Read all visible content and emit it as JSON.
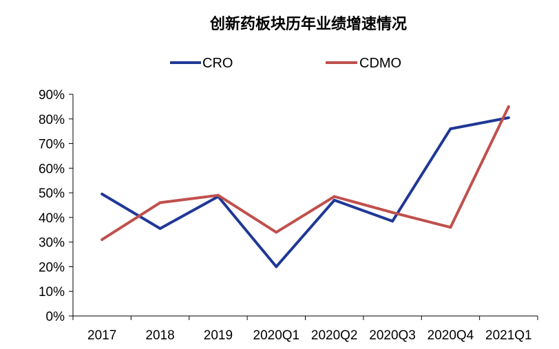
{
  "chart_data": {
    "type": "line",
    "title": "创新药板块历年业绩增速情况",
    "xlabel": "",
    "ylabel": "",
    "categories": [
      "2017",
      "2018",
      "2019",
      "2020Q1",
      "2020Q2",
      "2020Q3",
      "2020Q4",
      "2021Q1"
    ],
    "ylim": [
      0,
      90
    ],
    "yticks": [
      "0%",
      "10%",
      "20%",
      "30%",
      "40%",
      "50%",
      "60%",
      "70%",
      "80%",
      "90%"
    ],
    "grid": false,
    "legend_position": "top",
    "series": [
      {
        "name": "CRO",
        "color": "#1f3896",
        "values": [
          49.5,
          35.5,
          48.5,
          20,
          47,
          38.5,
          76,
          80.5
        ]
      },
      {
        "name": "CDMO",
        "color": "#c0504d",
        "values": [
          31,
          46,
          49,
          34,
          48.5,
          42,
          36,
          85
        ]
      }
    ]
  }
}
